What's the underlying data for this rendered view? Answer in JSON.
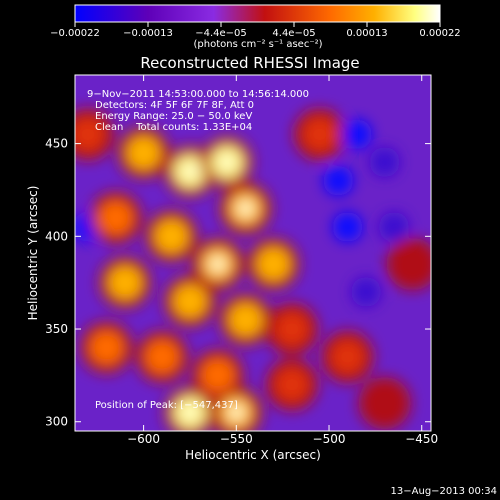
{
  "chart_data": {
    "type": "heatmap",
    "title": "Reconstructed RHESSI Image",
    "xlabel": "Heliocentric X (arcsec)",
    "ylabel": "Heliocentric Y (arcsec)",
    "xlim": [
      -637,
      -445
    ],
    "ylim": [
      295,
      487
    ],
    "x_ticks": [
      -600,
      -550,
      -500,
      -450
    ],
    "x_tick_labels": [
      "−600",
      "−550",
      "−500",
      "−450"
    ],
    "y_ticks": [
      300,
      350,
      400,
      450
    ],
    "y_tick_labels": [
      "300",
      "350",
      "400",
      "450"
    ],
    "colorbar": {
      "range": [
        -0.00022,
        0.00022
      ],
      "tick_labels": [
        "−0.00022",
        "−0.00013",
        "−4.4e−05",
        "4.4e−05",
        "0.00013",
        "0.00022"
      ],
      "unit_label": "(photons cm⁻² s⁻¹ asec⁻²)",
      "stops": [
        "#0000ff",
        "#5e00b8",
        "#8a2be2",
        "#c21010",
        "#ff6a00",
        "#ffb000",
        "#ffff80",
        "#ffffff"
      ]
    },
    "annotations": {
      "time_range": "9−Nov−2011 14:53:00.000 to 14:56:14.000",
      "detectors": "Detectors: 4F 5F 6F 7F 8F, Att 0",
      "energy_range": "Energy Range: 25.0 − 50.0 keV",
      "clean_counts": "Clean    Total counts: 1.33E+04",
      "position_of_peak": "Position of Peak: [−547,437]",
      "footer_date": "13−Aug−2013 00:34"
    },
    "emission_blobs": [
      {
        "x": -600,
        "y": 445,
        "v": 0.75
      },
      {
        "x": -575,
        "y": 435,
        "v": 0.95
      },
      {
        "x": -555,
        "y": 440,
        "v": 0.95
      },
      {
        "x": -545,
        "y": 415,
        "v": 0.85
      },
      {
        "x": -615,
        "y": 410,
        "v": 0.7
      },
      {
        "x": -585,
        "y": 400,
        "v": 0.8
      },
      {
        "x": -560,
        "y": 385,
        "v": 0.85
      },
      {
        "x": -530,
        "y": 385,
        "v": 0.8
      },
      {
        "x": -610,
        "y": 375,
        "v": 0.75
      },
      {
        "x": -575,
        "y": 365,
        "v": 0.8
      },
      {
        "x": -545,
        "y": 355,
        "v": 0.75
      },
      {
        "x": -520,
        "y": 350,
        "v": 0.55
      },
      {
        "x": -620,
        "y": 340,
        "v": 0.6
      },
      {
        "x": -590,
        "y": 335,
        "v": 0.7
      },
      {
        "x": -560,
        "y": 325,
        "v": 0.65
      },
      {
        "x": -575,
        "y": 305,
        "v": 0.9
      },
      {
        "x": -550,
        "y": 305,
        "v": 0.85
      },
      {
        "x": -520,
        "y": 320,
        "v": 0.5
      },
      {
        "x": -490,
        "y": 335,
        "v": 0.45
      },
      {
        "x": -470,
        "y": 310,
        "v": 0.4
      },
      {
        "x": -505,
        "y": 455,
        "v": 0.5
      },
      {
        "x": -455,
        "y": 385,
        "v": 0.3
      },
      {
        "x": -630,
        "y": 455,
        "v": 0.45
      },
      {
        "x": -485,
        "y": 455,
        "v": -0.9
      },
      {
        "x": -495,
        "y": 430,
        "v": -0.6
      },
      {
        "x": -490,
        "y": 405,
        "v": -0.7
      },
      {
        "x": -630,
        "y": 405,
        "v": -0.65
      },
      {
        "x": -470,
        "y": 440,
        "v": -0.5
      },
      {
        "x": -465,
        "y": 405,
        "v": -0.5
      },
      {
        "x": -480,
        "y": 370,
        "v": -0.45
      }
    ]
  }
}
